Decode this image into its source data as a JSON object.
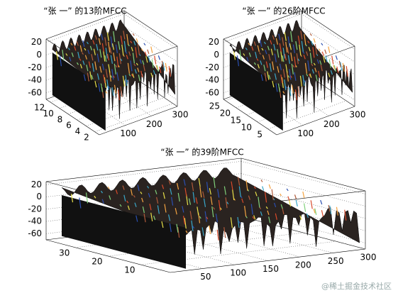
{
  "chart_data": [
    {
      "type": "surface",
      "title": "“张 一” 的13阶MFCC",
      "xlim": [
        0,
        300
      ],
      "xticks": [
        100,
        200,
        300
      ],
      "ylim": [
        1,
        13
      ],
      "yticks": [
        2,
        4,
        6,
        8,
        10,
        12
      ],
      "zlim": [
        -70,
        25
      ],
      "zticks": [
        -60,
        -40,
        -20,
        0,
        20
      ],
      "grid": true
    },
    {
      "type": "surface",
      "title": "“张 一” 的26阶MFCC",
      "xlim": [
        0,
        300
      ],
      "xticks": [
        100,
        200,
        300
      ],
      "ylim": [
        1,
        26
      ],
      "yticks": [
        5,
        10,
        15,
        20,
        25
      ],
      "zlim": [
        -70,
        25
      ],
      "zticks": [
        -60,
        -40,
        -20,
        0,
        20
      ],
      "grid": true
    },
    {
      "type": "surface",
      "title": "“张 一” 的39阶MFCC",
      "xlim": [
        0,
        300
      ],
      "xticks": [
        50,
        100,
        150,
        200,
        250,
        300
      ],
      "ylim": [
        1,
        39
      ],
      "yticks": [
        10,
        20,
        30
      ],
      "zlim": [
        -70,
        25
      ],
      "zticks": [
        -60,
        -40,
        -20,
        0,
        20
      ],
      "grid": true
    }
  ],
  "watermark": "@稀土掘金技术社区"
}
